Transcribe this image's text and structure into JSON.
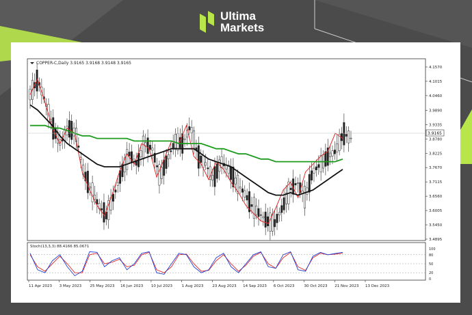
{
  "brand": {
    "line1": "Ultima",
    "line2": "Markets",
    "logo_icon": "ultima-markets-logo-icon",
    "accent_color": "#b8e64a"
  },
  "chart_data": {
    "type": "line",
    "header": "COPPER-C,Daily  3.9165 3.9168 3.9148 3.9165",
    "last_price_label": "3.9165",
    "x_tick_labels": [
      "11 Apr 2023",
      "3 May 2023",
      "25 May 2023",
      "16 Jun 2023",
      "10 Jul 2023",
      "1 Aug 2023",
      "23 Aug 2023",
      "14 Sep 2023",
      "6 Oct 2023",
      "30 Oct 2023",
      "21 Nov 2023",
      "13 Dec 2023"
    ],
    "y_tick_labels": [
      "4.1570",
      "4.1015",
      "4.0460",
      "3.9890",
      "3.9335",
      "3.8780",
      "3.8225",
      "3.7670",
      "3.7115",
      "3.6560",
      "3.6005",
      "3.5450",
      "3.4895"
    ],
    "ylim": [
      3.4895,
      4.157
    ],
    "grid": false,
    "series": [
      {
        "values": [
          4.05,
          4.11,
          4.02,
          3.92,
          3.86,
          3.92,
          3.9,
          3.75,
          3.68,
          3.62,
          3.58,
          3.66,
          3.75,
          3.82,
          3.78,
          3.86,
          3.84,
          3.73,
          3.8,
          3.87,
          3.86,
          3.93,
          3.81,
          3.78,
          3.72,
          3.79,
          3.76,
          3.71,
          3.67,
          3.62,
          3.59,
          3.56,
          3.55,
          3.61,
          3.68,
          3.71,
          3.65,
          3.75,
          3.78,
          3.81,
          3.83,
          3.9,
          3.88
        ],
        "color": "#e22b2b"
      },
      {
        "values": [
          4.01,
          3.99,
          3.96,
          3.93,
          3.89,
          3.86,
          3.84,
          3.82,
          3.8,
          3.78,
          3.77,
          3.77,
          3.77,
          3.78,
          3.79,
          3.8,
          3.81,
          3.82,
          3.83,
          3.84,
          3.84,
          3.84,
          3.84,
          3.82,
          3.8,
          3.79,
          3.78,
          3.77,
          3.75,
          3.73,
          3.71,
          3.69,
          3.67,
          3.66,
          3.66,
          3.67,
          3.66,
          3.67,
          3.68,
          3.7,
          3.72,
          3.74,
          3.76
        ],
        "color": "#111111"
      },
      {
        "values": [
          3.93,
          3.93,
          3.93,
          3.92,
          3.92,
          3.91,
          3.9,
          3.89,
          3.89,
          3.88,
          3.88,
          3.88,
          3.88,
          3.88,
          3.87,
          3.87,
          3.87,
          3.87,
          3.87,
          3.87,
          3.86,
          3.86,
          3.86,
          3.86,
          3.85,
          3.84,
          3.84,
          3.83,
          3.82,
          3.82,
          3.81,
          3.8,
          3.8,
          3.79,
          3.79,
          3.79,
          3.79,
          3.79,
          3.79,
          3.79,
          3.79,
          3.79,
          3.8
        ],
        "color": "#1c9a1c"
      }
    ],
    "stochastic": {
      "label": "Stoch(13,3,3) 88.4166 85.0671",
      "levels_labels": [
        "100",
        "80",
        "50",
        "20",
        "0"
      ],
      "ylim": [
        0,
        100
      ],
      "main": [
        85,
        30,
        20,
        60,
        80,
        40,
        10,
        25,
        90,
        88,
        40,
        60,
        70,
        30,
        50,
        85,
        90,
        20,
        15,
        50,
        85,
        80,
        40,
        20,
        30,
        70,
        85,
        40,
        20,
        50,
        80,
        90,
        40,
        35,
        80,
        90,
        30,
        25,
        75,
        88,
        80,
        84,
        88
      ],
      "signal": [
        80,
        40,
        25,
        50,
        75,
        50,
        20,
        20,
        80,
        85,
        50,
        55,
        65,
        40,
        45,
        80,
        88,
        30,
        20,
        40,
        80,
        82,
        50,
        25,
        28,
        60,
        80,
        50,
        25,
        45,
        75,
        88,
        50,
        35,
        70,
        88,
        40,
        28,
        70,
        85,
        80,
        82,
        85
      ],
      "main_color": "#1f3fd6",
      "signal_color": "#e22b2b"
    }
  }
}
